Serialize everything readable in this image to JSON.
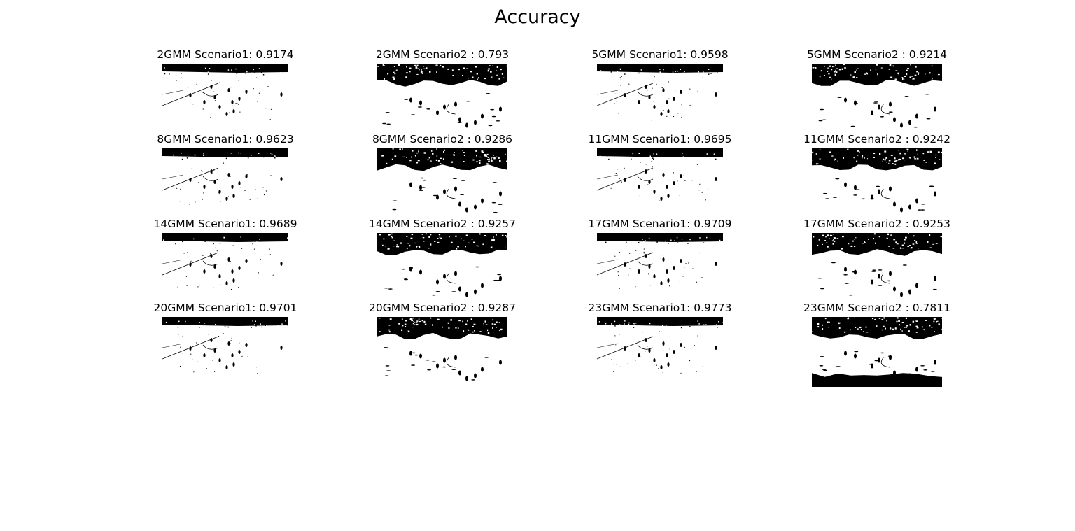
{
  "figure": {
    "title": "Accuracy"
  },
  "panels": [
    {
      "label": "2GMM Scenario1: 0.9174",
      "model": "2GMM",
      "scenario": "Scenario1",
      "accuracy": 0.9174
    },
    {
      "label": "2GMM Scenario2 : 0.793",
      "model": "2GMM",
      "scenario": "Scenario2",
      "accuracy": 0.793
    },
    {
      "label": "5GMM Scenario1: 0.9598",
      "model": "5GMM",
      "scenario": "Scenario1",
      "accuracy": 0.9598
    },
    {
      "label": "5GMM Scenario2 : 0.9214",
      "model": "5GMM",
      "scenario": "Scenario2",
      "accuracy": 0.9214
    },
    {
      "label": "8GMM Scenario1: 0.9623",
      "model": "8GMM",
      "scenario": "Scenario1",
      "accuracy": 0.9623
    },
    {
      "label": "8GMM Scenario2 : 0.9286",
      "model": "8GMM",
      "scenario": "Scenario2",
      "accuracy": 0.9286
    },
    {
      "label": "11GMM Scenario1: 0.9695",
      "model": "11GMM",
      "scenario": "Scenario1",
      "accuracy": 0.9695
    },
    {
      "label": "11GMM Scenario2 : 0.9242",
      "model": "11GMM",
      "scenario": "Scenario2",
      "accuracy": 0.9242
    },
    {
      "label": "14GMM Scenario1: 0.9689",
      "model": "14GMM",
      "scenario": "Scenario1",
      "accuracy": 0.9689
    },
    {
      "label": "14GMM Scenario2 : 0.9257",
      "model": "14GMM",
      "scenario": "Scenario2",
      "accuracy": 0.9257
    },
    {
      "label": "17GMM Scenario1: 0.9709",
      "model": "17GMM",
      "scenario": "Scenario1",
      "accuracy": 0.9709
    },
    {
      "label": "17GMM Scenario2 : 0.9253",
      "model": "17GMM",
      "scenario": "Scenario2",
      "accuracy": 0.9253
    },
    {
      "label": "20GMM Scenario1: 0.9701",
      "model": "20GMM",
      "scenario": "Scenario1",
      "accuracy": 0.9701
    },
    {
      "label": "20GMM Scenario2 : 0.9287",
      "model": "20GMM",
      "scenario": "Scenario2",
      "accuracy": 0.9287
    },
    {
      "label": "23GMM Scenario1: 0.9773",
      "model": "23GMM",
      "scenario": "Scenario1",
      "accuracy": 0.9773
    },
    {
      "label": "23GMM Scenario2 : 0.7811",
      "model": "23GMM",
      "scenario": "Scenario2",
      "accuracy": 0.7811
    }
  ]
}
